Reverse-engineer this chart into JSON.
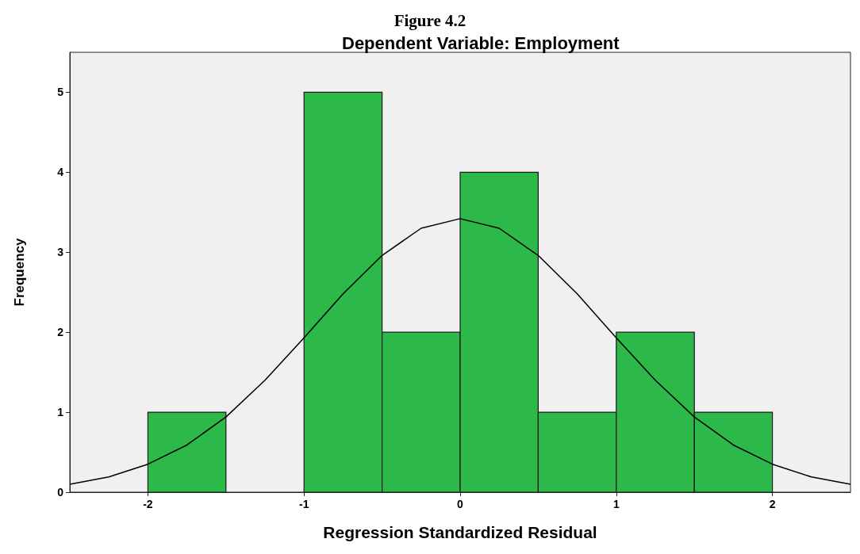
{
  "chart_data": {
    "type": "histogram",
    "title": "Figure 4.2",
    "subtitle": "Dependent Variable: Employment",
    "xlabel": "Regression Standardized Residual",
    "ylabel": "Frequency",
    "bins": [
      -2,
      -1.5,
      -1,
      -0.5,
      0,
      0.5,
      1,
      1.5,
      2
    ],
    "values": [
      1,
      0,
      5,
      2,
      4,
      1,
      2,
      1
    ],
    "color": "#2db84a",
    "series": [
      {
        "type": "line",
        "color": "#000000",
        "x": [
          -2.5,
          -2.25,
          -2,
          -1.75,
          -1.5,
          -1.25,
          -1,
          -0.75,
          -0.5,
          -0.25,
          0,
          0.25,
          0.5,
          0.75,
          1,
          1.25,
          1.5,
          1.75,
          2,
          2.25,
          2.5
        ],
        "values": [
          0.1,
          0.19,
          0.35,
          0.59,
          0.94,
          1.4,
          1.93,
          2.48,
          2.96,
          3.3,
          3.42,
          3.3,
          2.96,
          2.48,
          1.93,
          1.4,
          0.94,
          0.59,
          0.35,
          0.19,
          0.1
        ]
      }
    ],
    "xlim": [
      -2.5,
      2.5
    ],
    "xticks": [
      -2,
      -1,
      0,
      1,
      2
    ],
    "ylim": [
      0,
      5.5
    ],
    "yticks": [
      0,
      1,
      2,
      3,
      4,
      5
    ],
    "grid": false,
    "marker": "none",
    "line_style": "solid"
  }
}
